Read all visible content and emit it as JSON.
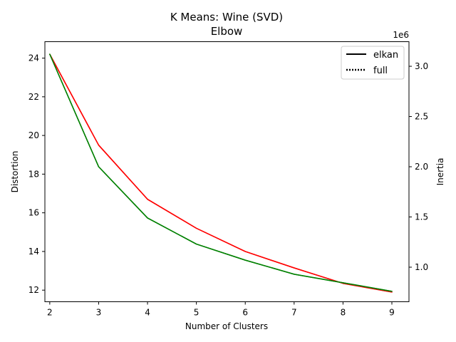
{
  "chart_data": {
    "type": "line",
    "title_line1": "K Means: Wine (SVD)",
    "title_line2": "Elbow",
    "xlabel": "Number of Clusters",
    "ylabel_left": "Distortion",
    "ylabel_right": "Inertia",
    "right_axis_offset_label": "1e6",
    "x": [
      2,
      3,
      4,
      5,
      6,
      7,
      8,
      9
    ],
    "xlim": [
      1.9,
      9.35
    ],
    "ylim_left": [
      11.4,
      24.85
    ],
    "ylim_right": [
      0.656,
      3.245
    ],
    "x_ticks": [
      "2",
      "3",
      "4",
      "5",
      "6",
      "7",
      "8",
      "9"
    ],
    "y_left_ticks": [
      "12",
      "14",
      "16",
      "18",
      "20",
      "22",
      "24"
    ],
    "y_right_ticks": [
      "1.0",
      "1.5",
      "2.0",
      "2.5",
      "3.0"
    ],
    "series": [
      {
        "axis": "left",
        "color": "#ff0000",
        "values": [
          24.2,
          19.5,
          16.7,
          15.2,
          14.0,
          13.15,
          12.35,
          11.9
        ]
      },
      {
        "axis": "left",
        "color": "#ff0000",
        "values": [
          24.2,
          19.5,
          16.7,
          15.2,
          14.0,
          13.15,
          12.35,
          11.9
        ]
      },
      {
        "axis": "right",
        "color": "#008000",
        "values": [
          3.12,
          2.0,
          1.49,
          1.23,
          1.07,
          0.93,
          0.845,
          0.76
        ]
      },
      {
        "axis": "right",
        "color": "#008000",
        "values": [
          3.12,
          2.0,
          1.49,
          1.23,
          1.07,
          0.93,
          0.845,
          0.76
        ]
      }
    ],
    "legend": {
      "position": "top-right",
      "entries": [
        {
          "label": "elkan",
          "style": "solid"
        },
        {
          "label": "full",
          "style": "dotted"
        }
      ]
    },
    "colors": {
      "left_axis_label": "#ff0000",
      "right_axis_label": "#008000"
    }
  }
}
